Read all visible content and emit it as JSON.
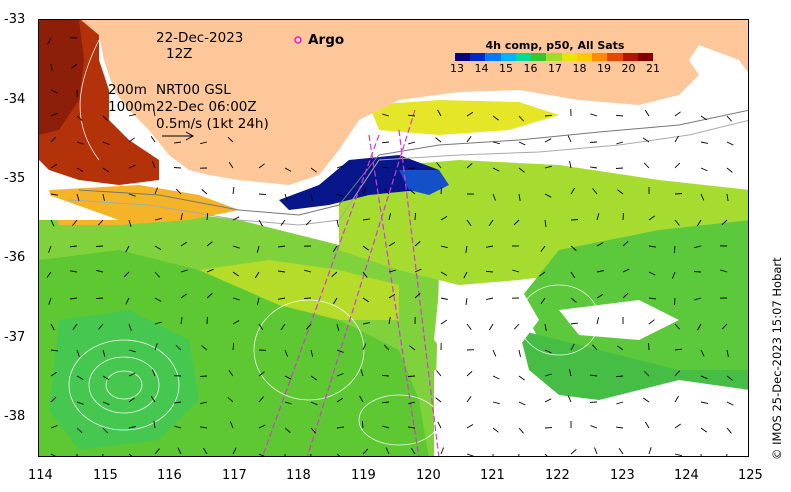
{
  "map": {
    "lon_ticks": [
      "114",
      "115",
      "116",
      "117",
      "118",
      "119",
      "120",
      "121",
      "122",
      "123",
      "124",
      "125"
    ],
    "lat_ticks": [
      "-33",
      "-34",
      "-35",
      "-36",
      "-37",
      "-38"
    ],
    "annotations": {
      "date": "22-Dec-2023",
      "time": "12Z",
      "contour_200": "200m",
      "contour_1000": "1000m",
      "product": "NRT00 GSL",
      "product_time": "22-Dec 06:00Z",
      "scale_arrow": "0.5m/s (1kt 24h)"
    },
    "legend": {
      "argo_label": "Argo",
      "argo_color": "#e020e0"
    },
    "colorbar": {
      "title": "4h comp, p50, All Sats",
      "labels": [
        "13",
        "14",
        "15",
        "16",
        "17",
        "18",
        "19",
        "20",
        "21"
      ],
      "colors": [
        "#000080",
        "#0028c8",
        "#0078ff",
        "#00b4ff",
        "#00dc96",
        "#32c832",
        "#a0dc28",
        "#e6e600",
        "#ffc800",
        "#ff8c00",
        "#e64600",
        "#b41400",
        "#800000"
      ]
    },
    "credit": "© IMOS 25-Dec-2023 15:07 Hobart",
    "colors": {
      "land": "#fdc79a",
      "coast": "#555555",
      "track": "#d838d8"
    }
  }
}
